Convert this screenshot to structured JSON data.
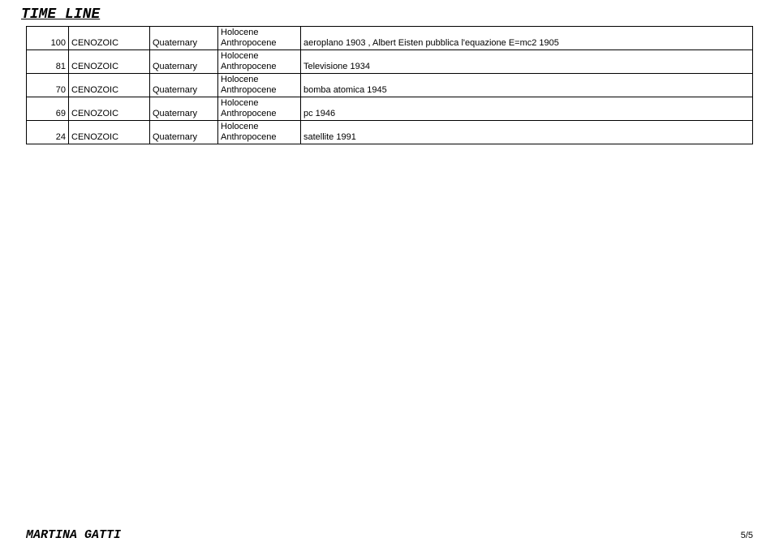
{
  "title": "TIME LINE",
  "footer": {
    "name": "MARTINA GATTI",
    "page": "5/5"
  },
  "rows": [
    {
      "num": "100",
      "era": "CENOZOIC",
      "period": "Quaternary",
      "epoch_line1": "Holocene",
      "epoch_line2": "Anthropocene",
      "event": "aeroplano 1903 , Albert Eisten pubblica l'equazione E=mc2  1905"
    },
    {
      "num": "81",
      "era": "CENOZOIC",
      "period": "Quaternary",
      "epoch_line1": "Holocene",
      "epoch_line2": "Anthropocene",
      "event": "Televisione 1934"
    },
    {
      "num": "70",
      "era": "CENOZOIC",
      "period": "Quaternary",
      "epoch_line1": "Holocene",
      "epoch_line2": "Anthropocene",
      "event": "bomba atomica 1945"
    },
    {
      "num": "69",
      "era": "CENOZOIC",
      "period": "Quaternary",
      "epoch_line1": "Holocene",
      "epoch_line2": "Anthropocene",
      "event": "pc 1946"
    },
    {
      "num": "24",
      "era": "CENOZOIC",
      "period": "Quaternary",
      "epoch_line1": "Holocene",
      "epoch_line2": "Anthropocene",
      "event": "satellite 1991"
    }
  ]
}
